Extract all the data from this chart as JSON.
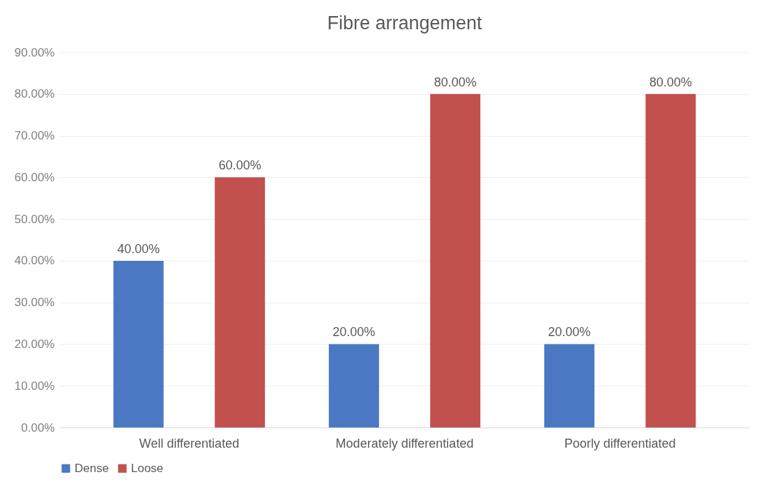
{
  "chart_data": {
    "type": "bar",
    "title": "Fibre arrangement",
    "categories": [
      "Well differentiated",
      "Moderately differentiated",
      "Poorly differentiated"
    ],
    "series": [
      {
        "name": "Dense",
        "color": "#4a78c2",
        "values": [
          40,
          20,
          20
        ],
        "value_labels": [
          "40.00%",
          "20.00%",
          "20.00%"
        ]
      },
      {
        "name": "Loose",
        "color": "#c2504d",
        "values": [
          60,
          80,
          80
        ],
        "value_labels": [
          "60.00%",
          "80.00%",
          "80.00%"
        ]
      }
    ],
    "ylim": [
      0,
      90
    ],
    "yticks": [
      {
        "value": 0,
        "label": "0.00%"
      },
      {
        "value": 10,
        "label": "10.00%"
      },
      {
        "value": 20,
        "label": "20.00%"
      },
      {
        "value": 30,
        "label": "30.00%"
      },
      {
        "value": 40,
        "label": "40.00%"
      },
      {
        "value": 50,
        "label": "50.00%"
      },
      {
        "value": 60,
        "label": "60.00%"
      },
      {
        "value": 70,
        "label": "70.00%"
      },
      {
        "value": 80,
        "label": "80.00%"
      },
      {
        "value": 90,
        "label": "90.00%"
      }
    ],
    "grid": "y",
    "legend": "bottom"
  }
}
